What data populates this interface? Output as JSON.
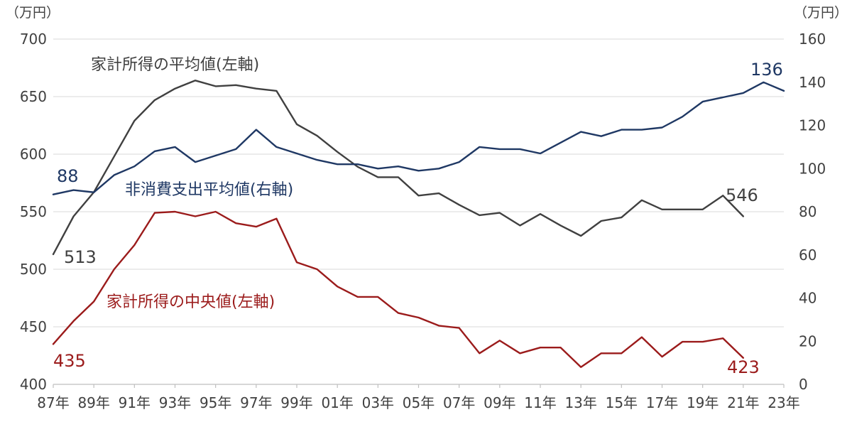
{
  "chart_data": {
    "type": "line",
    "y_unit_left": "（万円）",
    "y_unit_right": "（万円）",
    "ylim_left": [
      400,
      700
    ],
    "ylim_right": [
      0,
      160
    ],
    "yticks_left": [
      "400",
      "450",
      "500",
      "550",
      "600",
      "650",
      "700"
    ],
    "yticks_right": [
      "0",
      "20",
      "40",
      "60",
      "80",
      "100",
      "120",
      "140",
      "160"
    ],
    "x": [
      "1987",
      "1988",
      "1989",
      "1990",
      "1991",
      "1992",
      "1993",
      "1994",
      "1995",
      "1996",
      "1997",
      "1998",
      "1999",
      "2000",
      "2001",
      "2002",
      "2003",
      "2004",
      "2005",
      "2006",
      "2007",
      "2008",
      "2009",
      "2010",
      "2011",
      "2012",
      "2013",
      "2014",
      "2015",
      "2016",
      "2017",
      "2018",
      "2019",
      "2020",
      "2021",
      "2022",
      "2023"
    ],
    "xtick_labels": [
      "87年",
      "89年",
      "91年",
      "93年",
      "95年",
      "97年",
      "99年",
      "01年",
      "03年",
      "05年",
      "07年",
      "09年",
      "11年",
      "13年",
      "15年",
      "17年",
      "19年",
      "21年",
      "23年"
    ],
    "grid": true,
    "legend": "none (series labeled inline on chart)",
    "series": [
      {
        "name": "家計所得の平均値(左軸)",
        "axis": "left",
        "color": "#404040",
        "x": [
          "1987",
          "1988",
          "1989",
          "1990",
          "1991",
          "1992",
          "1993",
          "1994",
          "1995",
          "1996",
          "1997",
          "1998",
          "1999",
          "2000",
          "2001",
          "2002",
          "2003",
          "2004",
          "2005",
          "2006",
          "2007",
          "2008",
          "2009",
          "2010",
          "2011",
          "2012",
          "2013",
          "2014",
          "2015",
          "2016",
          "2017",
          "2018",
          "2019",
          "2020",
          "2021"
        ],
        "values": [
          513,
          546,
          567,
          598,
          629,
          647,
          657,
          664,
          659,
          660,
          657,
          655,
          626,
          616,
          602,
          589,
          580,
          580,
          564,
          566,
          556,
          547,
          549,
          538,
          548,
          538,
          529,
          542,
          545,
          560,
          552,
          552,
          552,
          564,
          546
        ]
      },
      {
        "name": "非消費支出平均値(右軸)",
        "axis": "right",
        "color": "#1f3864",
        "x": [
          "1987",
          "1988",
          "1989",
          "1990",
          "1991",
          "1992",
          "1993",
          "1994",
          "1995",
          "1996",
          "1997",
          "1998",
          "1999",
          "2000",
          "2001",
          "2002",
          "2003",
          "2004",
          "2005",
          "2006",
          "2007",
          "2008",
          "2009",
          "2010",
          "2011",
          "2012",
          "2013",
          "2014",
          "2015",
          "2016",
          "2017",
          "2018",
          "2019",
          "2020",
          "2021",
          "2022",
          "2023"
        ],
        "values": [
          88,
          90,
          89,
          97,
          101,
          108,
          110,
          103,
          106,
          109,
          118,
          110,
          107,
          104,
          102,
          102,
          100,
          101,
          99,
          100,
          103,
          110,
          109,
          109,
          107,
          112,
          117,
          115,
          118,
          118,
          119,
          124,
          131,
          133,
          135,
          140,
          136
        ]
      },
      {
        "name": "家計所得の中央値(左軸)",
        "axis": "left",
        "color": "#9b1b1b",
        "x": [
          "1987",
          "1988",
          "1989",
          "1990",
          "1991",
          "1992",
          "1993",
          "1994",
          "1995",
          "1996",
          "1997",
          "1998",
          "1999",
          "2000",
          "2001",
          "2002",
          "2003",
          "2004",
          "2005",
          "2006",
          "2007",
          "2008",
          "2009",
          "2010",
          "2011",
          "2012",
          "2013",
          "2014",
          "2015",
          "2016",
          "2017",
          "2018",
          "2019",
          "2020",
          "2021"
        ],
        "values": [
          435,
          455,
          472,
          500,
          521,
          549,
          550,
          546,
          550,
          540,
          537,
          544,
          506,
          500,
          485,
          476,
          476,
          462,
          458,
          451,
          449,
          427,
          438,
          427,
          432,
          432,
          415,
          427,
          427,
          441,
          424,
          437,
          437,
          440,
          423
        ]
      }
    ],
    "annotations": [
      {
        "text": "88",
        "series": 1,
        "point": "start"
      },
      {
        "text": "136",
        "series": 1,
        "point": "end"
      },
      {
        "text": "513",
        "series": 0,
        "point": "start"
      },
      {
        "text": "546",
        "series": 0,
        "point": "end"
      },
      {
        "text": "435",
        "series": 2,
        "point": "start"
      },
      {
        "text": "423",
        "series": 2,
        "point": "end"
      }
    ]
  }
}
